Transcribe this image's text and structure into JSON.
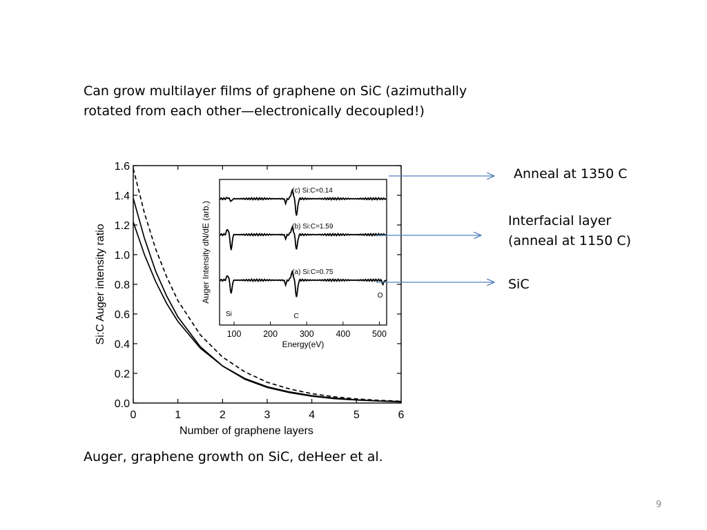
{
  "slide": {
    "heading_line1": "Can grow multilayer films of graphene on SiC (azimuthally",
    "heading_line2": "rotated from each other—electronically decoupled!)",
    "caption": "Auger, graphene growth on SiC, deHeer et al.",
    "page_number": "9"
  },
  "annotations": {
    "anneal": "Anneal at 1350 C",
    "interfacial_line1": "Interfacial layer",
    "interfacial_line2": "(anneal at 1150 C)",
    "sic": "SiC",
    "arrow_color": "#4f81bd"
  },
  "chart_data": [
    {
      "type": "line",
      "xlabel": "Number of graphene layers",
      "ylabel": "Si:C Auger intensity ratio",
      "xlim": [
        0,
        6
      ],
      "ylim": [
        0,
        1.6
      ],
      "xticks": [
        "0",
        "1",
        "2",
        "3",
        "4",
        "5",
        "6"
      ],
      "yticks": [
        "0.0",
        "0.2",
        "0.4",
        "0.6",
        "0.8",
        "1.0",
        "1.2",
        "1.4",
        "1.6"
      ],
      "series": [
        {
          "style": "solid",
          "x": [
            0,
            0.25,
            0.5,
            0.75,
            1,
            1.5,
            2,
            2.5,
            3,
            3.5,
            4,
            4.5,
            5,
            5.5,
            6
          ],
          "y": [
            1.22,
            1.0,
            0.82,
            0.67,
            0.55,
            0.37,
            0.25,
            0.165,
            0.11,
            0.075,
            0.05,
            0.033,
            0.022,
            0.014,
            0.01
          ]
        },
        {
          "style": "solid",
          "x": [
            0,
            0.25,
            0.5,
            0.75,
            1,
            1.5,
            2,
            2.5,
            3,
            3.5,
            4,
            4.5,
            5,
            5.5,
            6
          ],
          "y": [
            1.38,
            1.11,
            0.89,
            0.72,
            0.58,
            0.38,
            0.25,
            0.16,
            0.105,
            0.07,
            0.046,
            0.03,
            0.02,
            0.013,
            0.008
          ]
        },
        {
          "style": "dashed",
          "x": [
            0,
            0.25,
            0.5,
            0.75,
            1,
            1.5,
            2,
            2.5,
            3,
            3.5,
            4,
            4.5,
            5,
            5.5,
            6
          ],
          "y": [
            1.58,
            1.28,
            1.04,
            0.85,
            0.69,
            0.46,
            0.31,
            0.21,
            0.14,
            0.095,
            0.063,
            0.042,
            0.028,
            0.018,
            0.012
          ]
        }
      ],
      "grid": false
    },
    {
      "type": "line",
      "xlabel": "Energy(eV)",
      "ylabel": "Auger Intensity dN/dE (arb.)",
      "xlim": [
        60,
        520
      ],
      "xticks": [
        "100",
        "200",
        "300",
        "400",
        "500"
      ],
      "peak_labels": [
        "Si",
        "C",
        "O"
      ],
      "peaks_eV": {
        "Si": 92,
        "C": 272,
        "O": 510
      },
      "series": [
        {
          "name": "(c) Si:C=0.14",
          "baseline": 0.5,
          "si_depth": 0.25,
          "c_depth": 1.6,
          "o_depth": 0
        },
        {
          "name": "(b) Si:C=1.59",
          "baseline": 0,
          "si_depth": 1.5,
          "c_depth": 1.4,
          "o_depth": 0
        },
        {
          "name": "(a) Si:C=0.75",
          "baseline": -0.5,
          "si_depth": 1.3,
          "c_depth": 1.6,
          "o_depth": 0.4
        }
      ]
    }
  ]
}
